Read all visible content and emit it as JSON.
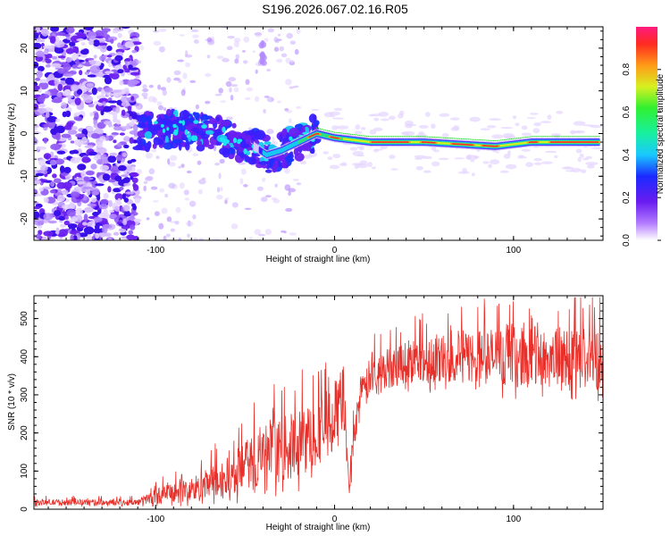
{
  "title": "S196.2026.067.02.16.R05",
  "colors": {
    "snr_line": "#e8302a",
    "spectrogram_violet": "#7b2cf0",
    "spectrogram_blue": "#1a35ff",
    "spectrogram_cyan": "#19e6f0",
    "spectrogram_green": "#20d020",
    "spectrogram_red": "#f0302a"
  },
  "chart_data": [
    {
      "type": "heatmap",
      "name": "spectrogram",
      "xlabel": "Height of straight line (km)",
      "ylabel": "Frequency (Hz)",
      "xlim": [
        -168,
        150
      ],
      "ylim": [
        -25,
        25
      ],
      "xticks": [
        -100,
        0,
        100
      ],
      "yticks": [
        -20,
        -10,
        0,
        10,
        20
      ],
      "grid": false,
      "description_of_trend": [
        {
          "x": -168,
          "freq": 0
        },
        {
          "x": -110,
          "freq": 0
        },
        {
          "x": -95,
          "freq": 1
        },
        {
          "x": -80,
          "freq": 1
        },
        {
          "x": -60,
          "freq": -1
        },
        {
          "x": -45,
          "freq": -3
        },
        {
          "x": -38,
          "freq": -5
        },
        {
          "x": -30,
          "freq": -4
        },
        {
          "x": -20,
          "freq": -2
        },
        {
          "x": -10,
          "freq": 0
        },
        {
          "x": 0,
          "freq": -1
        },
        {
          "x": 10,
          "freq": -1.5
        },
        {
          "x": 20,
          "freq": -2
        },
        {
          "x": 50,
          "freq": -2
        },
        {
          "x": 70,
          "freq": -2.5
        },
        {
          "x": 90,
          "freq": -3
        },
        {
          "x": 110,
          "freq": -2
        },
        {
          "x": 150,
          "freq": -2
        }
      ],
      "colorbar": {
        "label": "Normalized spectral amplitude",
        "range": [
          0,
          1
        ],
        "ticks": [
          0.0,
          0.2,
          0.4,
          0.6,
          0.8
        ]
      }
    },
    {
      "type": "line",
      "name": "snr",
      "xlabel": "Height of straight line (km)",
      "ylabel": "SNR (10 * v/v)",
      "xlim": [
        -168,
        150
      ],
      "ylim": [
        0,
        560
      ],
      "xticks": [
        -100,
        0,
        100
      ],
      "yticks": [
        0,
        100,
        200,
        300,
        400,
        500
      ],
      "grid": false,
      "series": [
        {
          "name": "SNR",
          "envelope": [
            {
              "x": -168,
              "mean": 18,
              "spread": 8
            },
            {
              "x": -110,
              "mean": 18,
              "spread": 8
            },
            {
              "x": -100,
              "mean": 35,
              "spread": 20
            },
            {
              "x": -80,
              "mean": 50,
              "spread": 35
            },
            {
              "x": -60,
              "mean": 80,
              "spread": 55
            },
            {
              "x": -40,
              "mean": 140,
              "spread": 80
            },
            {
              "x": -20,
              "mean": 170,
              "spread": 90
            },
            {
              "x": -10,
              "mean": 200,
              "spread": 90
            },
            {
              "x": 0,
              "mean": 250,
              "spread": 90
            },
            {
              "x": 5,
              "mean": 300,
              "spread": 80
            },
            {
              "x": 8,
              "mean": 60,
              "spread": 40
            },
            {
              "x": 12,
              "mean": 250,
              "spread": 60
            },
            {
              "x": 20,
              "mean": 350,
              "spread": 50
            },
            {
              "x": 40,
              "mean": 390,
              "spread": 60
            },
            {
              "x": 70,
              "mean": 400,
              "spread": 70
            },
            {
              "x": 100,
              "mean": 400,
              "spread": 80
            },
            {
              "x": 150,
              "mean": 395,
              "spread": 85
            }
          ]
        }
      ]
    }
  ]
}
